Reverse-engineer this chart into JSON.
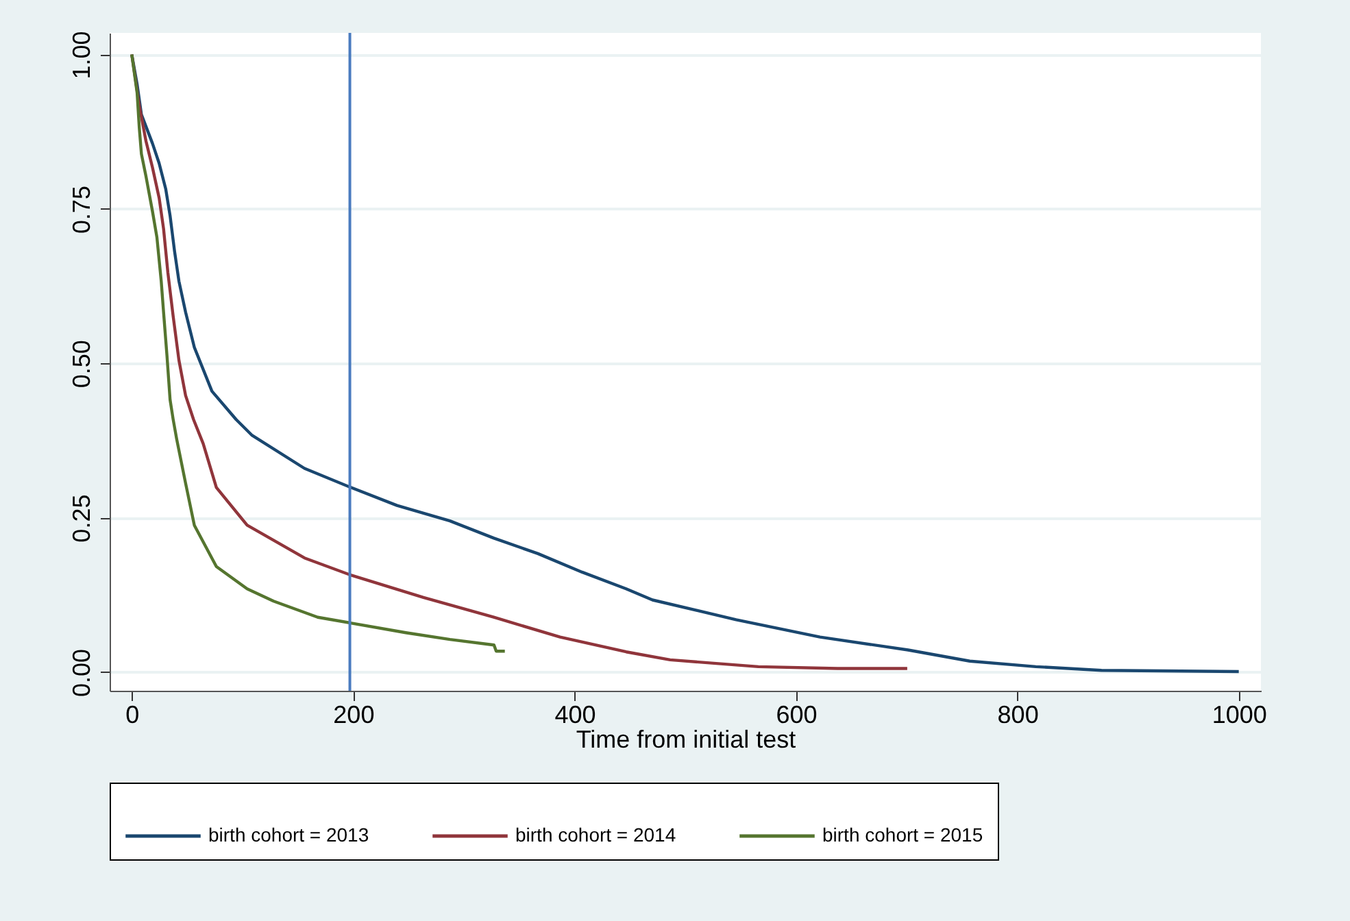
{
  "chart_data": {
    "type": "line",
    "xlabel": "Time from initial test",
    "xlim": [
      -20,
      1020
    ],
    "ylim": [
      -0.03,
      1.035
    ],
    "xticks": [
      0,
      200,
      400,
      600,
      800,
      1000
    ],
    "yticks": [
      {
        "value": 0,
        "label": "0.00"
      },
      {
        "value": 0.25,
        "label": "0.25"
      },
      {
        "value": 0.5,
        "label": "0.50"
      },
      {
        "value": 0.75,
        "label": "0.75"
      },
      {
        "value": 1,
        "label": "1.00"
      }
    ],
    "grid": "y",
    "legend": "bottom",
    "ref_lines": [
      {
        "axis": "x",
        "value": 197,
        "color": "#4a7bbf"
      }
    ],
    "series": [
      {
        "name": "birth cohort = 2013",
        "color": "#1a476f",
        "x": [
          0,
          4.8,
          8.7,
          18.7,
          24.7,
          30.7,
          34.6,
          38.6,
          42.6,
          48.6,
          56.5,
          72.4,
          94.3,
          108.3,
          156,
          196.7,
          239.6,
          287.4,
          327.2,
          366.9,
          406.8,
          446.6,
          470.4,
          546,
          621.7,
          701.3,
          757,
          816.7,
          876,
          1000
        ],
        "values": [
          1,
          0.952,
          0.903,
          0.856,
          0.824,
          0.782,
          0.739,
          0.682,
          0.633,
          0.583,
          0.526,
          0.455,
          0.409,
          0.384,
          0.33,
          0.3,
          0.27,
          0.245,
          0.217,
          0.192,
          0.162,
          0.135,
          0.117,
          0.085,
          0.057,
          0.036,
          0.018,
          0.009,
          0.003,
          0.001
        ]
      },
      {
        "name": "birth cohort = 2014",
        "color": "#90353b",
        "x": [
          0,
          6.8,
          12.8,
          18.7,
          24.7,
          28.7,
          32.6,
          37.4,
          42.6,
          48.6,
          55.8,
          64.5,
          76.4,
          104.2,
          156,
          196.7,
          263.5,
          327,
          386.9,
          446.6,
          486.3,
          566,
          637.6,
          700.5
        ],
        "values": [
          1,
          0.917,
          0.86,
          0.817,
          0.768,
          0.718,
          0.647,
          0.576,
          0.505,
          0.448,
          0.409,
          0.37,
          0.299,
          0.238,
          0.185,
          0.158,
          0.121,
          0.089,
          0.057,
          0.033,
          0.02,
          0.009,
          0.006,
          0.006
        ]
      },
      {
        "name": "birth cohort = 2015",
        "color": "#55752f",
        "x": [
          0,
          4.8,
          6.8,
          8.7,
          12.8,
          18.7,
          22.7,
          26.6,
          28.7,
          31.8,
          34.6,
          37.4,
          40.6,
          48.6,
          56.5,
          76.4,
          104.2,
          128.1,
          168,
          196.7,
          247.5,
          287.4,
          327.2,
          329.2,
          337
        ],
        "values": [
          1,
          0.938,
          0.881,
          0.839,
          0.803,
          0.746,
          0.704,
          0.633,
          0.583,
          0.512,
          0.441,
          0.409,
          0.377,
          0.306,
          0.238,
          0.171,
          0.135,
          0.115,
          0.089,
          0.08,
          0.064,
          0.053,
          0.044,
          0.034,
          0.034
        ]
      }
    ]
  }
}
